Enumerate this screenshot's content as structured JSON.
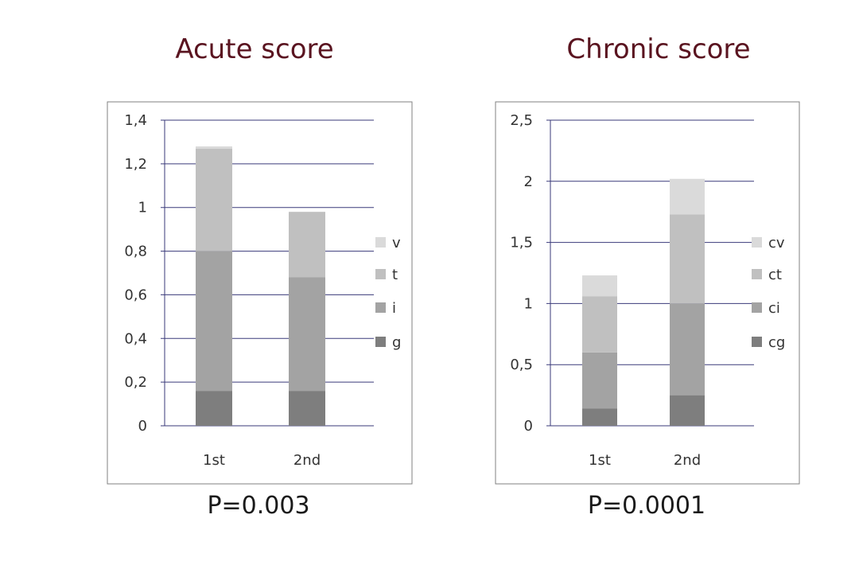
{
  "colors": {
    "g": "#7e7e7e",
    "i": "#a3a3a3",
    "t": "#c0c0c0",
    "v": "#dadada",
    "frame": "#808080",
    "grid": "#3a3a7a",
    "title": "#5a1420"
  },
  "chart_data": [
    {
      "type": "bar",
      "stacked": true,
      "title": "Acute score",
      "annotation": "P=0.003",
      "categories": [
        "1st",
        "2nd"
      ],
      "series": [
        {
          "name": "g",
          "values": [
            0.16,
            0.16
          ]
        },
        {
          "name": "i",
          "values": [
            0.64,
            0.52
          ]
        },
        {
          "name": "t",
          "values": [
            0.47,
            0.3
          ]
        },
        {
          "name": "v",
          "values": [
            0.01,
            0.0
          ]
        }
      ],
      "ylim": [
        0,
        1.4
      ],
      "yticks": [
        "0",
        "0,2",
        "0,4",
        "0,6",
        "0,8",
        "1",
        "1,2",
        "1,4"
      ],
      "ytick_values": [
        0,
        0.2,
        0.4,
        0.6,
        0.8,
        1.0,
        1.2,
        1.4
      ],
      "legend": [
        "v",
        "t",
        "i",
        "g"
      ],
      "legend_position": "right",
      "grid": true
    },
    {
      "type": "bar",
      "stacked": true,
      "title": "Chronic score",
      "annotation": "P=0.0001",
      "categories": [
        "1st",
        "2nd"
      ],
      "series": [
        {
          "name": "cg",
          "values": [
            0.14,
            0.25
          ]
        },
        {
          "name": "ci",
          "values": [
            0.46,
            0.75
          ]
        },
        {
          "name": "ct",
          "values": [
            0.46,
            0.73
          ]
        },
        {
          "name": "cv",
          "values": [
            0.17,
            0.29
          ]
        }
      ],
      "ylim": [
        0,
        2.5
      ],
      "yticks": [
        "0",
        "0,5",
        "1",
        "1,5",
        "2",
        "2,5"
      ],
      "ytick_values": [
        0,
        0.5,
        1.0,
        1.5,
        2.0,
        2.5
      ],
      "legend": [
        "cv",
        "ct",
        "ci",
        "cg"
      ],
      "legend_position": "right",
      "grid": true
    }
  ]
}
